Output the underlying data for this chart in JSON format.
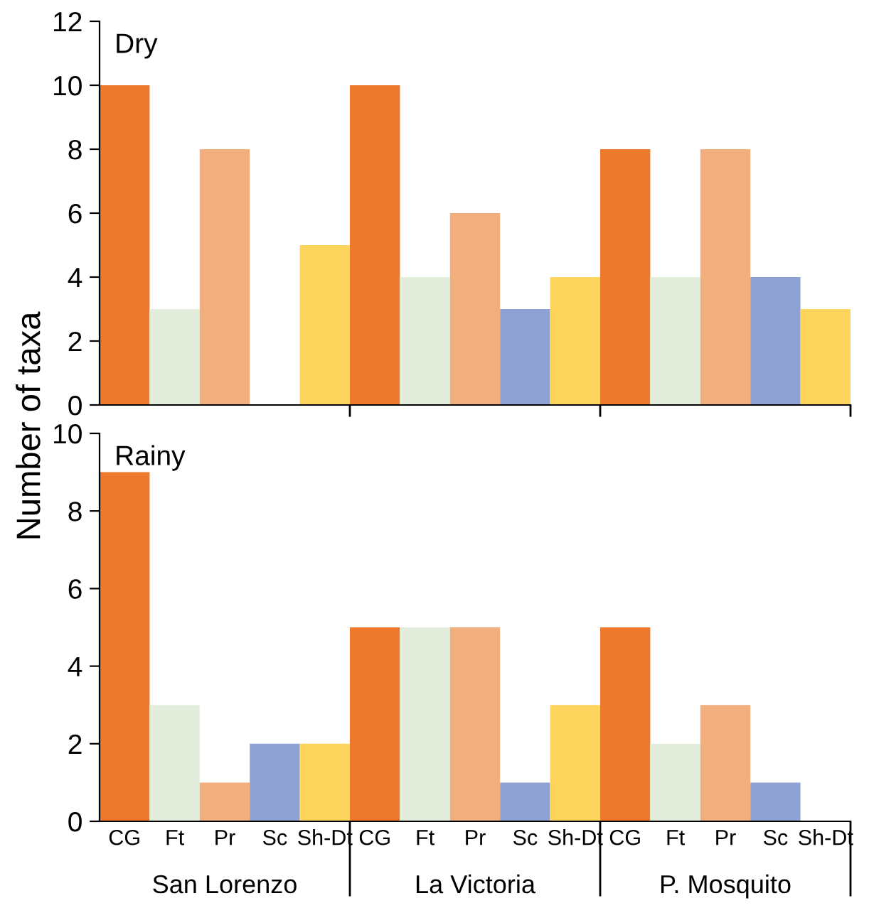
{
  "chart_data": [
    {
      "type": "bar",
      "title": "Dry",
      "ylabel": "Number of taxa",
      "categories": [
        null,
        null,
        null,
        null,
        null,
        null,
        null,
        null,
        null,
        null,
        null,
        null,
        null,
        null,
        null
      ],
      "values": [
        10,
        3,
        8,
        0,
        5,
        10,
        4,
        6,
        3,
        4,
        8,
        4,
        8,
        4,
        3
      ],
      "colors": [
        "#ed7a2c",
        "#e2eedb",
        "#f2ae7c",
        "#8da2d3",
        "#fdd55c",
        "#ed7a2c",
        "#e2eedb",
        "#f2ae7c",
        "#8da2d3",
        "#fdd55c",
        "#ed7a2c",
        "#e2eedb",
        "#f2ae7c",
        "#8da2d3",
        "#fdd55c"
      ],
      "ylim": [
        0,
        12
      ],
      "yticks": [
        0,
        2,
        4,
        6,
        8,
        10,
        12
      ],
      "tick_labels": "y",
      "grid": false,
      "legend": false
    },
    {
      "type": "bar",
      "title": "Rainy",
      "categories": [
        "CG",
        "Ft",
        "Pr",
        "Sc",
        "Sh-Dt",
        "CG",
        "Ft",
        "Pr",
        "Sc",
        "Sh-Dt",
        "CG",
        "Ft",
        "Pr",
        "Sc",
        "Sh-Dt"
      ],
      "values": [
        9,
        3,
        1,
        2,
        2,
        5,
        5,
        5,
        1,
        3,
        5,
        2,
        3,
        1,
        0
      ],
      "colors": [
        "#ed7a2c",
        "#e2eedb",
        "#f2ae7c",
        "#8da2d3",
        "#fdd55c",
        "#ed7a2c",
        "#e2eedb",
        "#f2ae7c",
        "#8da2d3",
        "#fdd55c",
        "#ed7a2c",
        "#e2eedb",
        "#f2ae7c",
        "#8da2d3",
        "#fdd55c"
      ],
      "ylim": [
        0,
        10
      ],
      "yticks": [
        0,
        2,
        4,
        6,
        8,
        10
      ],
      "annotations": [
        "San Lorenzo",
        "La Victoria",
        "P. Mosquito"
      ],
      "grid": false,
      "legend": false
    }
  ]
}
